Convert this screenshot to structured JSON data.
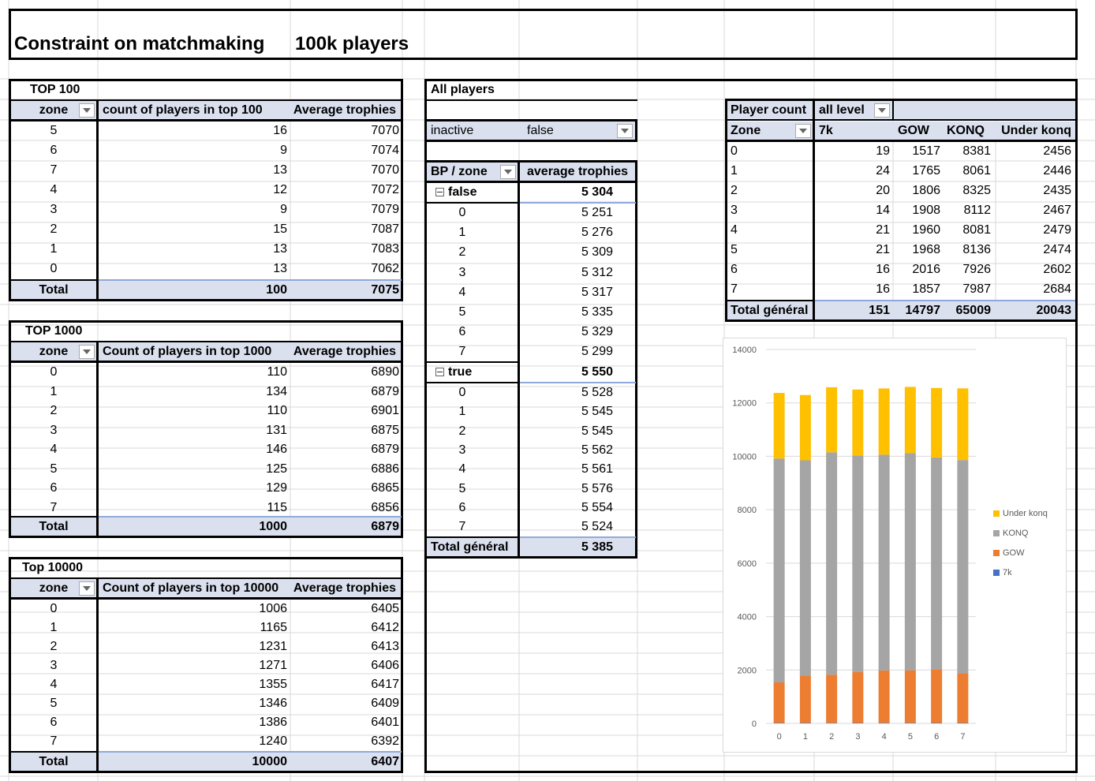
{
  "header": {
    "title": "Constraint on matchmaking",
    "subtitle": "100k players"
  },
  "top100": {
    "title": "TOP 100",
    "headers": [
      "zone",
      "count of players in top 100",
      "Average trophies"
    ],
    "rows": [
      [
        "5",
        "16",
        "7070"
      ],
      [
        "6",
        "9",
        "7074"
      ],
      [
        "7",
        "13",
        "7070"
      ],
      [
        "4",
        "12",
        "7072"
      ],
      [
        "3",
        "9",
        "7079"
      ],
      [
        "2",
        "15",
        "7087"
      ],
      [
        "1",
        "13",
        "7083"
      ],
      [
        "0",
        "13",
        "7062"
      ]
    ],
    "total": [
      "Total",
      "100",
      "7075"
    ]
  },
  "top1000": {
    "title": "TOP 1000",
    "headers": [
      "zone",
      "Count of players in top 1000",
      "Average trophies"
    ],
    "rows": [
      [
        "0",
        "110",
        "6890"
      ],
      [
        "1",
        "134",
        "6879"
      ],
      [
        "2",
        "110",
        "6901"
      ],
      [
        "3",
        "131",
        "6875"
      ],
      [
        "4",
        "146",
        "6879"
      ],
      [
        "5",
        "125",
        "6886"
      ],
      [
        "6",
        "129",
        "6865"
      ],
      [
        "7",
        "115",
        "6856"
      ]
    ],
    "total": [
      "Total",
      "1000",
      "6879"
    ]
  },
  "top10000": {
    "title": "Top 10000",
    "headers": [
      "zone",
      "Count of players in top 10000",
      "Average trophies"
    ],
    "rows": [
      [
        "0",
        "1006",
        "6405"
      ],
      [
        "1",
        "1165",
        "6412"
      ],
      [
        "2",
        "1231",
        "6413"
      ],
      [
        "3",
        "1271",
        "6406"
      ],
      [
        "4",
        "1355",
        "6417"
      ],
      [
        "5",
        "1346",
        "6409"
      ],
      [
        "6",
        "1386",
        "6401"
      ],
      [
        "7",
        "1240",
        "6392"
      ]
    ],
    "total": [
      "Total",
      "10000",
      "6407"
    ]
  },
  "allplayers": {
    "title": "All players",
    "filter_label": "inactive",
    "filter_value": "false",
    "headers": [
      "BP / zone",
      "average trophies"
    ],
    "group_false": {
      "label": "false",
      "value": "5 304"
    },
    "rows_false": [
      [
        "0",
        "5 251"
      ],
      [
        "1",
        "5 276"
      ],
      [
        "2",
        "5 309"
      ],
      [
        "3",
        "5 312"
      ],
      [
        "4",
        "5 317"
      ],
      [
        "5",
        "5 335"
      ],
      [
        "6",
        "5 329"
      ],
      [
        "7",
        "5 299"
      ]
    ],
    "group_true": {
      "label": "true",
      "value": "5 550"
    },
    "rows_true": [
      [
        "0",
        "5 528"
      ],
      [
        "1",
        "5 545"
      ],
      [
        "2",
        "5 545"
      ],
      [
        "3",
        "5 562"
      ],
      [
        "4",
        "5 561"
      ],
      [
        "5",
        "5 576"
      ],
      [
        "6",
        "5 554"
      ],
      [
        "7",
        "5 524"
      ]
    ],
    "total": [
      "Total général",
      "5 385"
    ]
  },
  "playercount": {
    "title": "Player count",
    "filter_value": "all level",
    "headers": [
      "Zone",
      "7k",
      "GOW",
      "KONQ",
      "Under konq"
    ],
    "rows": [
      [
        "0",
        "19",
        "1517",
        "8381",
        "2456"
      ],
      [
        "1",
        "24",
        "1765",
        "8061",
        "2446"
      ],
      [
        "2",
        "20",
        "1806",
        "8325",
        "2435"
      ],
      [
        "3",
        "14",
        "1908",
        "8112",
        "2467"
      ],
      [
        "4",
        "21",
        "1960",
        "8081",
        "2479"
      ],
      [
        "5",
        "21",
        "1968",
        "8136",
        "2474"
      ],
      [
        "6",
        "16",
        "2016",
        "7926",
        "2602"
      ],
      [
        "7",
        "16",
        "1857",
        "7987",
        "2684"
      ]
    ],
    "total": [
      "Total général",
      "151",
      "14797",
      "65009",
      "20043"
    ]
  },
  "chart_data": {
    "type": "bar",
    "stacked": true,
    "categories": [
      "0",
      "1",
      "2",
      "3",
      "4",
      "5",
      "6",
      "7"
    ],
    "series": [
      {
        "name": "7k",
        "color": "#4472c4",
        "values": [
          19,
          24,
          20,
          14,
          21,
          21,
          16,
          16
        ]
      },
      {
        "name": "GOW",
        "color": "#ed7d31",
        "values": [
          1517,
          1765,
          1806,
          1908,
          1960,
          1968,
          2016,
          1857
        ]
      },
      {
        "name": "KONQ",
        "color": "#a5a5a5",
        "values": [
          8381,
          8061,
          8325,
          8112,
          8081,
          8136,
          7926,
          7987
        ]
      },
      {
        "name": "Under konq",
        "color": "#ffc000",
        "values": [
          2456,
          2446,
          2435,
          2467,
          2479,
          2474,
          2602,
          2684
        ]
      }
    ],
    "ylim": [
      0,
      14000
    ],
    "yticks": [
      "0",
      "2000",
      "4000",
      "6000",
      "8000",
      "10000",
      "12000",
      "14000"
    ],
    "grid": true,
    "legend": "right"
  }
}
